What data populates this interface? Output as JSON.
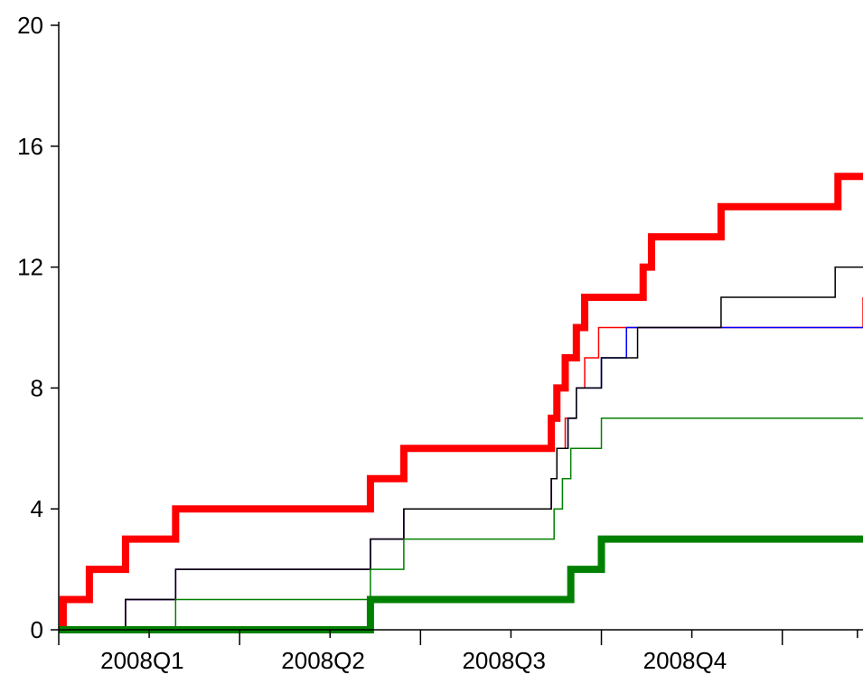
{
  "chart_data": {
    "type": "line",
    "title": "",
    "xlabel": "",
    "ylabel": "",
    "x_range": [
      0,
      14.45
    ],
    "ylim": [
      0,
      20
    ],
    "y_ticks": [
      0,
      4,
      8,
      12,
      16,
      20
    ],
    "y_tick_labels": [
      "0",
      "4",
      "8",
      "12",
      "16",
      "20"
    ],
    "x_tick_labels": [
      {
        "label": "2008Q1",
        "x": 1.5
      },
      {
        "label": "2008Q2",
        "x": 4.75
      },
      {
        "label": "2008Q3",
        "x": 8.0
      },
      {
        "label": "2008Q4",
        "x": 11.25
      }
    ],
    "x_major_ticks": [
      0,
      3.25,
      6.5,
      9.75,
      13.0
    ],
    "x_minor_ticks": [
      1.625,
      4.875,
      8.125,
      11.375,
      14.35
    ],
    "grid": false,
    "legend": "none",
    "series": [
      {
        "color": "#ff0000",
        "width": 8,
        "x": [
          0.0,
          0.08,
          0.55,
          1.2,
          2.1,
          5.6,
          6.2,
          8.85,
          8.95,
          9.1,
          9.3,
          9.45,
          9.7,
          10.2,
          10.5,
          10.65,
          11.9,
          14.0,
          14.45
        ],
        "y": [
          0,
          1,
          2,
          3,
          4,
          5,
          6,
          7,
          8,
          9,
          10,
          11,
          11,
          11,
          12,
          13,
          14,
          15,
          15
        ]
      },
      {
        "color": "#ff0000",
        "width": 1.5,
        "x": [
          0.0,
          1.2,
          2.1,
          5.6,
          6.2,
          8.85,
          8.95,
          9.1,
          9.3,
          9.45,
          9.7,
          14.45
        ],
        "y": [
          0,
          1,
          2,
          3,
          4,
          5,
          6,
          7,
          8,
          9,
          10,
          11
        ]
      },
      {
        "color": "#0000ff",
        "width": 1.5,
        "x": [
          0.0,
          1.2,
          2.1,
          5.6,
          6.2,
          8.85,
          8.95,
          9.15,
          9.3,
          9.75,
          10.2,
          14.45
        ],
        "y": [
          0,
          1,
          2,
          3,
          4,
          5,
          6,
          7,
          8,
          9,
          10,
          10
        ]
      },
      {
        "color": "#000000",
        "width": 1.5,
        "x": [
          0.0,
          1.2,
          2.1,
          5.6,
          6.2,
          8.85,
          8.95,
          9.15,
          9.3,
          9.75,
          10.4,
          11.9,
          13.95,
          14.45
        ],
        "y": [
          0,
          1,
          2,
          3,
          4,
          5,
          6,
          7,
          8,
          9,
          10,
          11,
          12,
          12
        ]
      },
      {
        "color": "#008000",
        "width": 1.5,
        "x": [
          0.0,
          2.1,
          5.6,
          6.2,
          8.9,
          9.05,
          9.2,
          9.75,
          14.45
        ],
        "y": [
          0,
          1,
          2,
          3,
          4,
          5,
          6,
          7,
          7
        ]
      },
      {
        "color": "#008000",
        "width": 8,
        "x": [
          0.0,
          5.6,
          9.2,
          9.75,
          14.45
        ],
        "y": [
          0,
          1,
          2,
          3,
          3
        ]
      }
    ]
  }
}
